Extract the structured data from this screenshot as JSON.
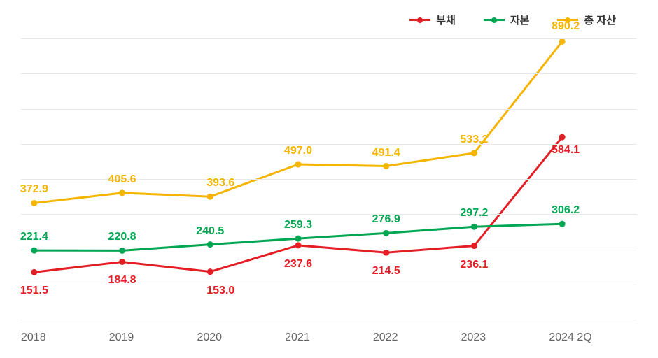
{
  "chart": {
    "type": "line",
    "background_color": "#ffffff",
    "grid_color": "#e8e8e8",
    "axis_label_color": "#666666",
    "categories": [
      "2018",
      "2019",
      "2020",
      "2021",
      "2022",
      "2023",
      "2024 2Q"
    ],
    "category_fontsize": 16,
    "ylim": [
      0,
      900
    ],
    "grid_count": 9,
    "line_width": 3,
    "marker_radius": 4.5,
    "data_label_fontsize": 16,
    "series": [
      {
        "name": "부채",
        "color": "#e31e24",
        "values": [
          151.5,
          184.8,
          153.0,
          237.6,
          214.5,
          236.1,
          584.1
        ],
        "label_offsets": [
          {
            "dx": 0,
            "dy": 28
          },
          {
            "dx": 0,
            "dy": 28
          },
          {
            "dx": 15,
            "dy": 28
          },
          {
            "dx": 0,
            "dy": 28
          },
          {
            "dx": 0,
            "dy": 28
          },
          {
            "dx": 0,
            "dy": 28
          },
          {
            "dx": 5,
            "dy": 20
          }
        ]
      },
      {
        "name": "자본",
        "color": "#00a651",
        "values": [
          221.4,
          220.8,
          240.5,
          259.3,
          276.9,
          297.2,
          306.2
        ],
        "label_offsets": [
          {
            "dx": 0,
            "dy": -18
          },
          {
            "dx": 0,
            "dy": -18
          },
          {
            "dx": 0,
            "dy": -18
          },
          {
            "dx": 0,
            "dy": -18
          },
          {
            "dx": 0,
            "dy": -18
          },
          {
            "dx": 0,
            "dy": -18
          },
          {
            "dx": 5,
            "dy": -18
          }
        ]
      },
      {
        "name": "총 자산",
        "color": "#f5b400",
        "values": [
          372.9,
          405.6,
          393.6,
          497.0,
          491.4,
          533.2,
          890.2
        ],
        "label_offsets": [
          {
            "dx": 0,
            "dy": -18
          },
          {
            "dx": 0,
            "dy": -18
          },
          {
            "dx": 15,
            "dy": -18
          },
          {
            "dx": 0,
            "dy": -18
          },
          {
            "dx": 0,
            "dy": -18
          },
          {
            "dx": 0,
            "dy": -18
          },
          {
            "dx": 5,
            "dy": -20
          }
        ]
      }
    ]
  }
}
